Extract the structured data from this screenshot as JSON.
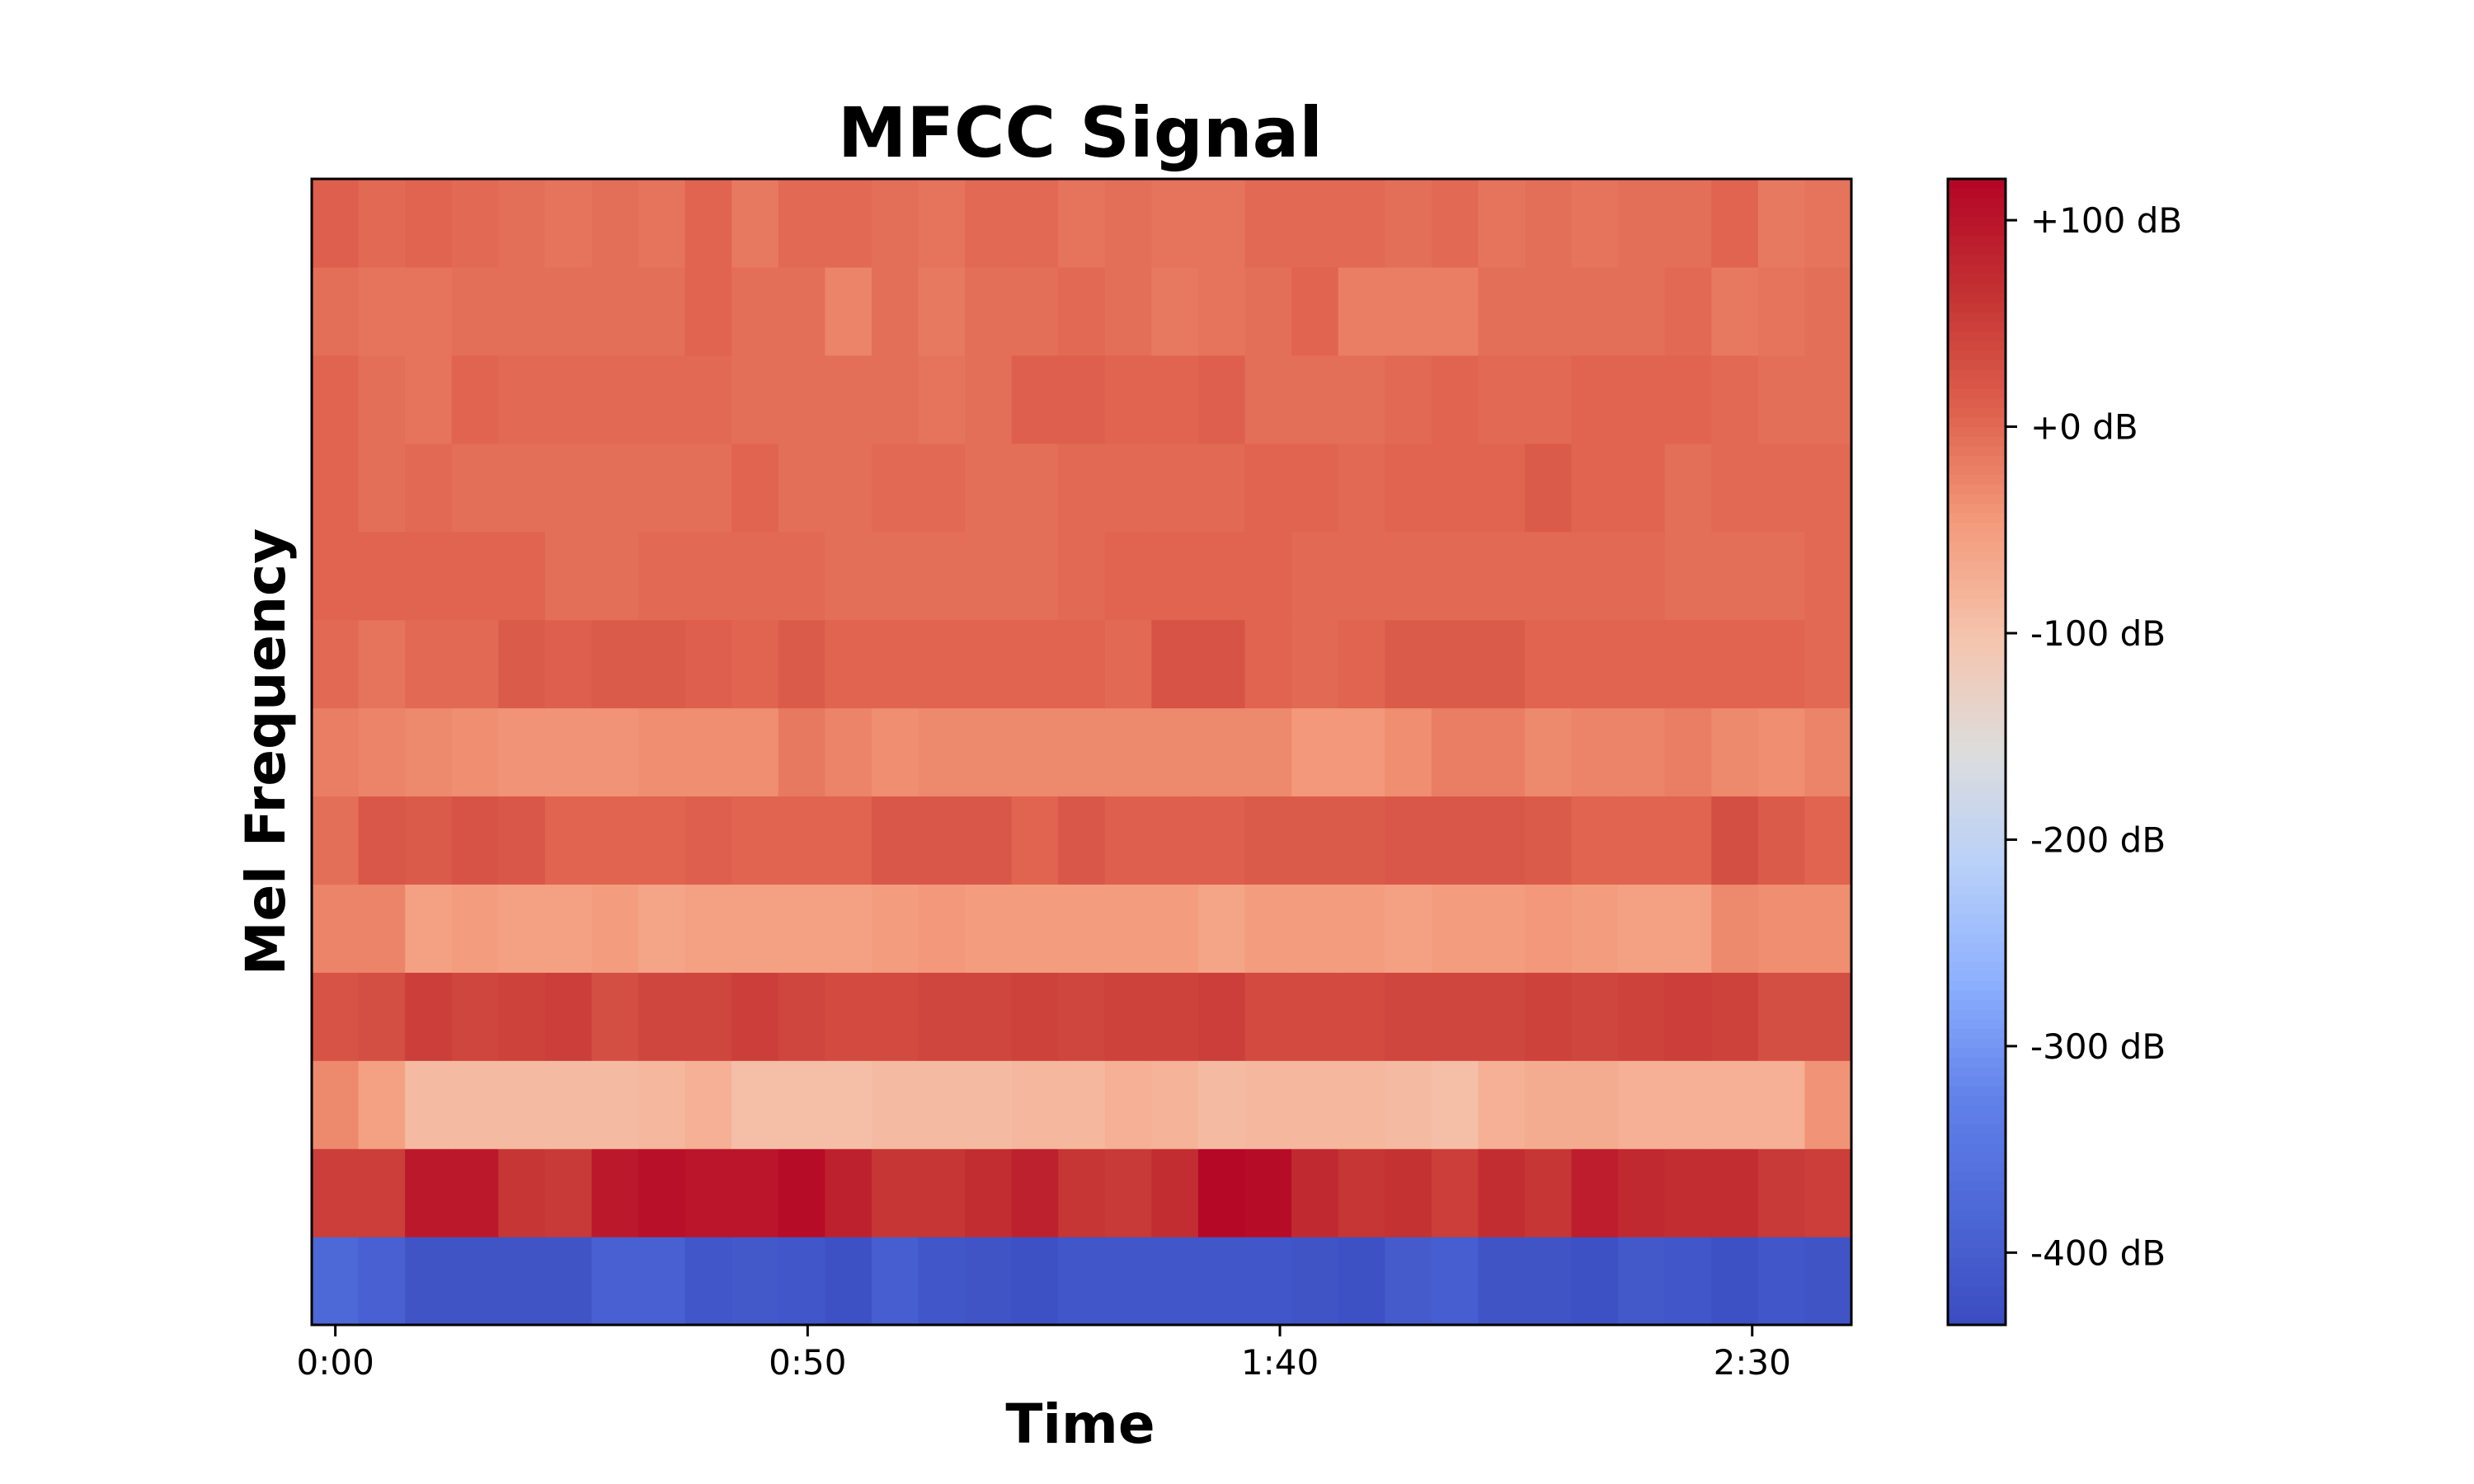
{
  "chart_data": {
    "type": "heatmap",
    "title": "MFCC Signal",
    "xlabel": "Time",
    "ylabel": "Mel Frequency",
    "x_ticks": [
      {
        "seconds": 0,
        "label": "0:00"
      },
      {
        "seconds": 50,
        "label": "0:50"
      },
      {
        "seconds": 100,
        "label": "1:40"
      },
      {
        "seconds": 150,
        "label": "2:30"
      }
    ],
    "x_range_seconds": [
      -2.5,
      160.5
    ],
    "frame_duration_seconds": 5.1,
    "n_coefficients": 13,
    "colorbar": {
      "colormap": "coolwarm",
      "range_db": [
        -435,
        120
      ],
      "ticks": [
        {
          "value": 100,
          "label": "+100 dB"
        },
        {
          "value": 0,
          "label": "+0 dB"
        },
        {
          "value": -100,
          "label": "-100 dB"
        },
        {
          "value": -200,
          "label": "-200 dB"
        },
        {
          "value": -300,
          "label": "-300 dB"
        },
        {
          "value": -400,
          "label": "-400 dB"
        }
      ]
    },
    "values_db": [
      [
        -380,
        -395,
        -420,
        -420,
        -420,
        -420,
        -395,
        -395,
        -415,
        -410,
        -415,
        -425,
        -400,
        -415,
        -420,
        -425,
        -415,
        -415,
        -415,
        -415,
        -415,
        -420,
        -425,
        -405,
        -400,
        -420,
        -420,
        -425,
        -410,
        -415,
        -425,
        -415,
        -420
      ],
      [
        50,
        50,
        95,
        95,
        60,
        55,
        95,
        105,
        100,
        100,
        110,
        85,
        60,
        60,
        70,
        85,
        60,
        55,
        70,
        115,
        110,
        75,
        60,
        65,
        50,
        70,
        60,
        90,
        75,
        70,
        70,
        55,
        50
      ],
      [
        -30,
        -55,
        -90,
        -90,
        -90,
        -90,
        -90,
        -85,
        -75,
        -95,
        -95,
        -95,
        -90,
        -90,
        -90,
        -85,
        -85,
        -75,
        -80,
        -90,
        -85,
        -85,
        -85,
        -90,
        -95,
        -75,
        -70,
        -70,
        -75,
        -75,
        -75,
        -75,
        -40
      ],
      [
        25,
        30,
        50,
        40,
        45,
        50,
        30,
        40,
        40,
        50,
        40,
        35,
        35,
        40,
        40,
        45,
        40,
        45,
        45,
        50,
        35,
        35,
        35,
        40,
        40,
        40,
        45,
        40,
        45,
        50,
        45,
        30,
        30
      ],
      [
        -25,
        -25,
        -55,
        -50,
        -55,
        -55,
        -50,
        -60,
        -55,
        -55,
        -55,
        -55,
        -50,
        -45,
        -50,
        -50,
        -50,
        -50,
        -50,
        -60,
        -50,
        -50,
        -50,
        -55,
        -50,
        -50,
        -45,
        -50,
        -55,
        -55,
        -30,
        -35,
        -35
      ],
      [
        -5,
        20,
        15,
        25,
        20,
        5,
        5,
        5,
        10,
        5,
        5,
        5,
        20,
        20,
        20,
        5,
        20,
        10,
        10,
        10,
        15,
        15,
        15,
        20,
        20,
        20,
        15,
        5,
        5,
        5,
        30,
        15,
        5
      ],
      [
        -20,
        -25,
        -30,
        -35,
        -40,
        -40,
        -40,
        -35,
        -35,
        -35,
        -15,
        -25,
        -35,
        -30,
        -30,
        -30,
        -30,
        -30,
        -30,
        -30,
        -30,
        -45,
        -45,
        -35,
        -20,
        -20,
        -30,
        -25,
        -25,
        -20,
        -30,
        -35,
        -25
      ],
      [
        0,
        -10,
        0,
        0,
        15,
        10,
        15,
        15,
        10,
        5,
        15,
        5,
        5,
        5,
        5,
        5,
        5,
        0,
        25,
        25,
        5,
        0,
        5,
        15,
        15,
        15,
        5,
        5,
        5,
        5,
        5,
        5,
        0
      ],
      [
        5,
        5,
        5,
        5,
        5,
        -5,
        -5,
        0,
        0,
        0,
        0,
        -5,
        -5,
        -5,
        -5,
        -5,
        0,
        5,
        5,
        5,
        5,
        0,
        0,
        0,
        0,
        0,
        0,
        0,
        0,
        -5,
        -5,
        -5,
        0
      ],
      [
        5,
        -5,
        0,
        -5,
        -5,
        -5,
        -5,
        -5,
        -5,
        5,
        -5,
        -5,
        0,
        0,
        -5,
        -5,
        0,
        0,
        0,
        0,
        5,
        5,
        0,
        5,
        5,
        5,
        15,
        5,
        5,
        -5,
        0,
        0,
        0
      ],
      [
        5,
        -5,
        -10,
        5,
        0,
        0,
        0,
        0,
        0,
        -5,
        -5,
        -5,
        -5,
        -10,
        -5,
        10,
        10,
        5,
        5,
        10,
        -5,
        -5,
        -5,
        0,
        5,
        0,
        0,
        5,
        5,
        5,
        0,
        -5,
        -5
      ],
      [
        -5,
        -10,
        -10,
        -5,
        -5,
        -5,
        -5,
        -5,
        5,
        -5,
        -5,
        -25,
        -5,
        -15,
        -5,
        -5,
        0,
        -5,
        -15,
        -10,
        -5,
        5,
        -20,
        -20,
        -20,
        -5,
        -5,
        -5,
        -5,
        0,
        -15,
        -10,
        -5
      ],
      [
        10,
        0,
        5,
        0,
        -5,
        -10,
        -5,
        -10,
        5,
        -15,
        0,
        0,
        -5,
        -10,
        0,
        0,
        -10,
        -5,
        -10,
        -10,
        0,
        0,
        0,
        -5,
        0,
        -10,
        -5,
        -10,
        -5,
        -5,
        5,
        -15,
        -10
      ]
    ]
  }
}
